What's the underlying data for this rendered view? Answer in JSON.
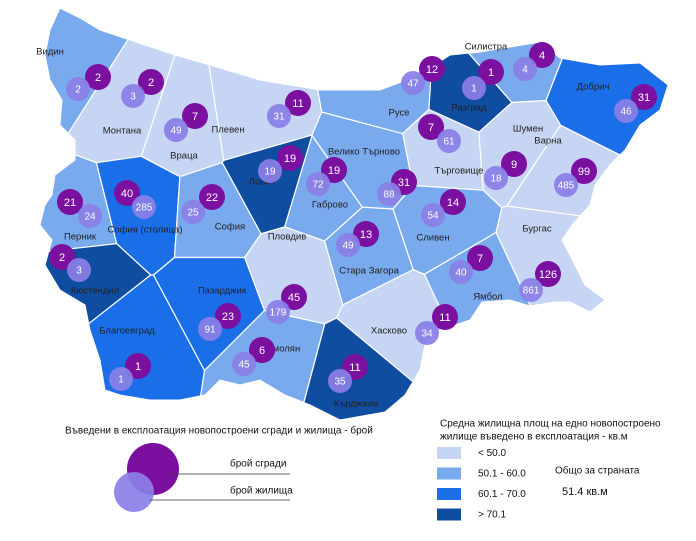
{
  "regions": [
    {
      "name": "Видин",
      "buildings": 2,
      "dwellings": 2,
      "color": "#7aaaee"
    },
    {
      "name": "Монтана",
      "buildings": 2,
      "dwellings": 3,
      "color": "#c5d5f3"
    },
    {
      "name": "Враца",
      "buildings": 7,
      "dwellings": 49,
      "color": "#c5d5f3"
    },
    {
      "name": "Плевен",
      "buildings": 11,
      "dwellings": 31,
      "color": "#c5d5f3"
    },
    {
      "name": "Ловеч",
      "buildings": 19,
      "dwellings": 19,
      "color": "#0f4da0"
    },
    {
      "name": "Габрово",
      "buildings": 19,
      "dwellings": 72,
      "color": "#7aaaee"
    },
    {
      "name": "Велико Търново",
      "buildings": 31,
      "dwellings": 88,
      "color": "#7aaaee"
    },
    {
      "name": "Русе",
      "buildings": 12,
      "dwellings": 47,
      "color": "#7aaaee"
    },
    {
      "name": "Разград",
      "buildings": 1,
      "dwellings": 1,
      "color": "#0f4da0"
    },
    {
      "name": "Силистра",
      "buildings": 4,
      "dwellings": 4,
      "color": "#7aaaee"
    },
    {
      "name": "Добрич",
      "buildings": 31,
      "dwellings": 46,
      "color": "#1a6fe8"
    },
    {
      "name": "Търговище",
      "buildings": 7,
      "dwellings": 61,
      "color": "#c5d5f3"
    },
    {
      "name": "Шумен",
      "buildings": 9,
      "dwellings": 18,
      "color": "#c5d5f3"
    },
    {
      "name": "Варна",
      "buildings": 99,
      "dwellings": 485,
      "color": "#c5d5f3"
    },
    {
      "name": "София (столица)",
      "buildings": 40,
      "dwellings": 285,
      "color": "#1a6fe8"
    },
    {
      "name": "София",
      "buildings": 22,
      "dwellings": 25,
      "color": "#7aaaee"
    },
    {
      "name": "Перник",
      "buildings": 21,
      "dwellings": 24,
      "color": "#7aaaee"
    },
    {
      "name": "Кюстендил",
      "buildings": 2,
      "dwellings": 3,
      "color": "#0f4da0"
    },
    {
      "name": "Благоевград",
      "buildings": 1,
      "dwellings": 1,
      "color": "#1a6fe8"
    },
    {
      "name": "Пазарджик",
      "buildings": 23,
      "dwellings": 91,
      "color": "#1a6fe8"
    },
    {
      "name": "Пловдив",
      "buildings": 45,
      "dwellings": 179,
      "color": "#c5d5f3"
    },
    {
      "name": "Смолян",
      "buildings": 6,
      "dwellings": 45,
      "color": "#7aaaee"
    },
    {
      "name": "Кърджали",
      "buildings": 11,
      "dwellings": 35,
      "color": "#0f4da0"
    },
    {
      "name": "Хасково",
      "buildings": 11,
      "dwellings": 34,
      "color": "#c5d5f3"
    },
    {
      "name": "Стара Загора",
      "buildings": 13,
      "dwellings": 49,
      "color": "#7aaaee"
    },
    {
      "name": "Сливен",
      "buildings": 14,
      "dwellings": 54,
      "color": "#7aaaee"
    },
    {
      "name": "Ямбол",
      "buildings": 7,
      "dwellings": 40,
      "color": "#7aaaee"
    },
    {
      "name": "Бургас",
      "buildings": 126,
      "dwellings": 861,
      "color": "#c5d5f3"
    }
  ],
  "legend": {
    "bubbles_title": "Въведени в експлоатация новопостроени сгради и жилища - брой",
    "buildings_label": "брой сгради",
    "dwellings_label": "брой жилища",
    "area_title": [
      "Средна жилищна площ на едно новопостроено",
      "жилище въведено в експлоатация - кв.м"
    ],
    "classes": [
      {
        "label": "< 50.0",
        "color": "#c5d5f3"
      },
      {
        "label": "50.1 - 60.0",
        "color": "#7aaaee"
      },
      {
        "label": "60.1 - 70.0",
        "color": "#1a6fe8"
      },
      {
        "label": "> 70.1",
        "color": "#0f4da0"
      }
    ],
    "total_label": "Общо за страната",
    "total_value": "51.4 кв.м"
  }
}
